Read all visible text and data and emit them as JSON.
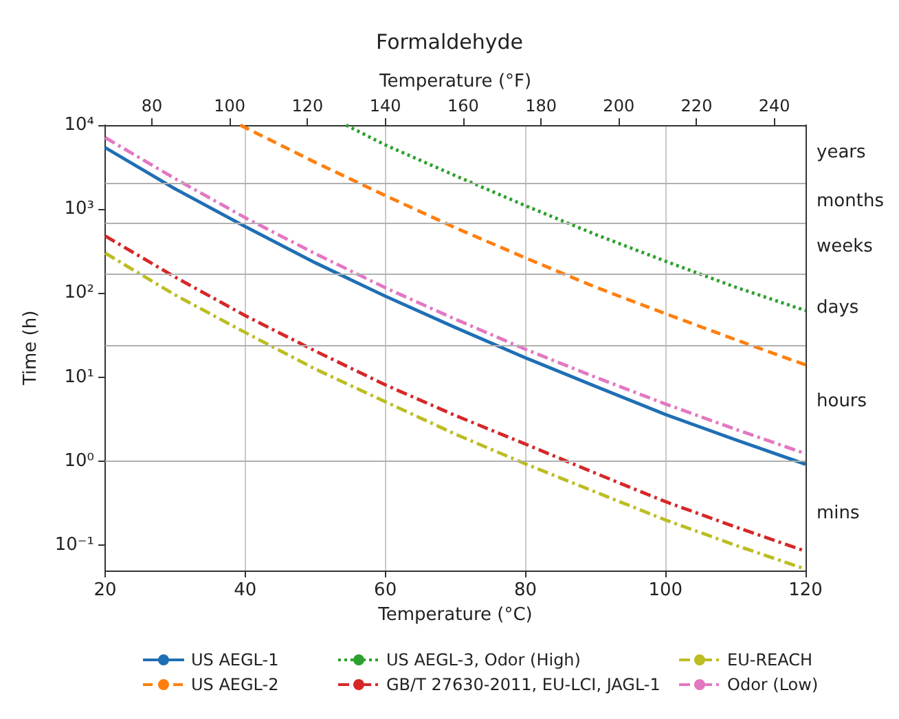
{
  "chart_data": {
    "type": "line",
    "title": "Formaldehyde",
    "xlabel": "Temperature (°C)",
    "ylabel": "Time (h)",
    "x2label": "Temperature (°F)",
    "xlim": [
      20,
      120
    ],
    "xticks": [
      20,
      40,
      60,
      80,
      100,
      120
    ],
    "x2lim": [
      68,
      248
    ],
    "x2ticks": [
      80,
      100,
      120,
      140,
      160,
      180,
      200,
      220,
      240
    ],
    "ylim": [
      0.05,
      10000
    ],
    "yticks": [
      {
        "value": 0.1,
        "label": "10⁻¹"
      },
      {
        "value": 1,
        "label": "10⁰"
      },
      {
        "value": 10,
        "label": "10¹"
      },
      {
        "value": 100,
        "label": "10²"
      },
      {
        "value": 1000,
        "label": "10³"
      },
      {
        "value": 10000,
        "label": "10⁴"
      }
    ],
    "log": "y",
    "grid": "x",
    "legend": "bottom",
    "marker": "none",
    "series": [
      {
        "name": "US AEGL-1",
        "color": "#1f6fb4",
        "line_style": "solid",
        "x": [
          20,
          30,
          40,
          50,
          60,
          70,
          80,
          90,
          100,
          110,
          120
        ],
        "values": [
          5400,
          1740,
          620,
          230,
          92,
          39,
          17,
          7.8,
          3.6,
          1.8,
          0.92
        ]
      },
      {
        "name": "US AEGL-2",
        "color": "#ff7f0e",
        "line_style": "dashed",
        "x": [
          39.3,
          50,
          60,
          70,
          80,
          90,
          100,
          110,
          120
        ],
        "values": [
          10000,
          3600,
          1450,
          600,
          263,
          118,
          57,
          28,
          14
        ]
      },
      {
        "name": "US AEGL-3, Odor (High)",
        "color": "#2ca02c",
        "line_style": "dotted",
        "x": [
          54.4,
          60,
          70,
          80,
          90,
          100,
          110,
          120
        ],
        "values": [
          10000,
          5800,
          2500,
          1100,
          500,
          240,
          118,
          62
        ]
      },
      {
        "name": "GB/T 27630-2011, EU-LCI, JAGL-1",
        "color": "#d62728",
        "line_style": "dashdot",
        "x": [
          20,
          30,
          40,
          50,
          60,
          70,
          80,
          90,
          100,
          110,
          120
        ],
        "values": [
          480,
          155,
          54,
          20.5,
          8.1,
          3.5,
          1.6,
          0.72,
          0.33,
          0.165,
          0.085
        ]
      },
      {
        "name": "EU-REACH",
        "color": "#bcbd22",
        "line_style": "dashdot",
        "x": [
          20,
          30,
          40,
          50,
          60,
          70,
          80,
          90,
          100,
          110,
          120
        ],
        "values": [
          300,
          95,
          34,
          12.5,
          5.1,
          2.1,
          0.93,
          0.43,
          0.2,
          0.1,
          0.052
        ]
      },
      {
        "name": "Odor (Low)",
        "color": "#e377c2",
        "line_style": "dashdot",
        "x": [
          20,
          30,
          40,
          50,
          60,
          70,
          80,
          90,
          100,
          110,
          120
        ],
        "values": [
          7100,
          2300,
          790,
          295,
          116,
          49,
          21.5,
          10,
          4.8,
          2.4,
          1.23
        ]
      }
    ],
    "ref_lines": [
      {
        "axis": "y",
        "value": 2016,
        "color": "#b0b0b0"
      },
      {
        "axis": "y",
        "value": 672,
        "color": "#b0b0b0"
      },
      {
        "axis": "y",
        "value": 168,
        "color": "#b0b0b0"
      },
      {
        "axis": "y",
        "value": 24,
        "color": "#b0b0b0"
      },
      {
        "axis": "y",
        "value": 1,
        "color": "#b0b0b0"
      }
    ],
    "annotations": [
      "years",
      "months",
      "weeks",
      "days",
      "hours",
      "mins"
    ]
  }
}
